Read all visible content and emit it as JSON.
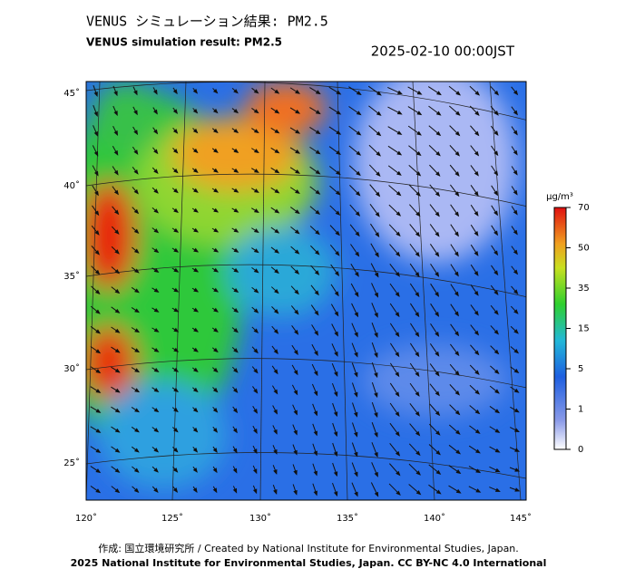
{
  "header": {
    "title_jp": "VENUS シミュレーション結果: PM2.5",
    "title_en": "VENUS simulation result: PM2.5",
    "timestamp": "2025-02-10 00:00JST"
  },
  "map": {
    "lat_labels": [
      "45˚",
      "40˚",
      "35˚",
      "30˚",
      "25˚"
    ],
    "lon_labels": [
      "120˚",
      "125˚",
      "130˚",
      "135˚",
      "140˚",
      "145˚"
    ]
  },
  "colorbar": {
    "unit": "μg/m³",
    "ticks": [
      70,
      50,
      35,
      15,
      5,
      1,
      0
    ]
  },
  "footer": {
    "credit": "作成: 国立環境研究所 / Created by National Institute for Environmental Studies, Japan.",
    "license": "2025 National Institute for Environmental Studies, Japan. CC BY-NC 4.0 International"
  }
}
